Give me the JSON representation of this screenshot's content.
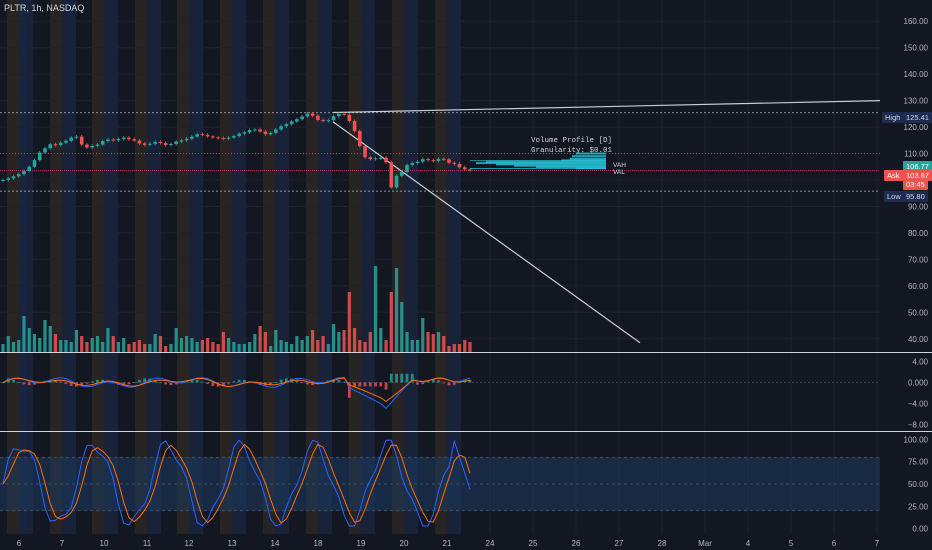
{
  "symbol_label": "PLTR, 1h, NASDAQ",
  "volume_profile": {
    "title": "Volume Profile [D]",
    "granularity": "Granularity: $0.01",
    "vah": "VAH",
    "val": "VAL"
  },
  "tags": {
    "high_label": "High",
    "high_value": "125.41",
    "ask_label": "Ask",
    "ask_value": "103.67",
    "last_value": "106.77",
    "timer_value": "03:45",
    "low_label": "Low",
    "low_value": "95.80"
  },
  "colors": {
    "bg": "#131722",
    "up": "#26a69a",
    "down": "#ef5350",
    "ma_blue": "#2962ff",
    "ma_orange": "#ff6d00",
    "session_blue": "#1c2a4a",
    "session_orange": "#3a3027"
  },
  "chart_data": [
    {
      "type": "line",
      "name": "price",
      "ylim": [
        35,
        165
      ],
      "y_ticks": [
        "160.00",
        "150.00",
        "140.00",
        "130.00",
        "120.00",
        "110.00",
        "100.00",
        "90.00",
        "80.00",
        "70.00",
        "60.00",
        "50.00",
        "40.00"
      ],
      "y_tick_values": [
        160,
        150,
        140,
        130,
        120,
        110,
        100,
        90,
        80,
        70,
        60,
        50,
        40
      ],
      "x_tick_labels": [
        "6",
        "7",
        "10",
        "11",
        "12",
        "13",
        "14",
        "18",
        "19",
        "20",
        "21",
        "24",
        "25",
        "26",
        "27",
        "28",
        "Mar",
        "4",
        "5",
        "6",
        "7"
      ],
      "close": [
        100,
        100.6,
        101.4,
        102.2,
        103.4,
        105,
        107.5,
        110.4,
        112,
        113.5,
        113.2,
        114.1,
        114.8,
        116,
        116.4,
        113.4,
        112.3,
        112.9,
        113.4,
        114.7,
        115.3,
        115,
        115.5,
        116,
        115.4,
        114.9,
        113.8,
        113.3,
        113.7,
        114.4,
        114,
        113.2,
        113.6,
        114.5,
        115,
        115.6,
        116.4,
        117.3,
        117.1,
        116.5,
        116.1,
        115.9,
        115.6,
        116,
        116.6,
        117.5,
        118,
        118.9,
        119.1,
        118.3,
        117.3,
        117.8,
        119.1,
        120.3,
        121.1,
        122.1,
        123,
        124,
        125.1,
        124.3,
        122.7,
        122.3,
        122.6,
        124.1,
        125,
        124.7,
        122.3,
        118.5,
        112.8,
        108.6,
        107.9,
        108.2,
        108.4,
        106.7,
        97.2,
        101.6,
        103,
        105.7,
        106.4,
        106.9,
        107.9,
        107.5,
        107.2,
        108,
        107.8,
        106.5,
        106.1,
        104.8,
        104,
        103.67
      ],
      "volume": [
        4,
        8,
        5,
        6,
        18,
        12,
        9,
        7,
        16,
        13,
        9,
        6,
        6,
        5,
        11,
        8,
        5,
        7,
        8,
        5,
        12,
        8,
        5,
        7,
        4,
        5,
        6,
        4,
        4,
        9,
        8,
        3,
        4,
        12,
        7,
        8,
        7,
        5,
        6,
        7,
        5,
        4,
        10,
        7,
        5,
        4,
        4,
        5,
        9,
        13,
        10,
        3,
        11,
        6,
        5,
        4,
        8,
        6,
        8,
        11,
        6,
        8,
        4,
        14,
        10,
        11,
        30,
        12,
        6,
        5,
        10,
        43,
        12,
        6,
        30,
        42,
        25,
        10,
        6,
        6,
        17,
        10,
        9,
        10,
        8,
        3,
        4,
        4,
        6,
        5
      ],
      "annotations": {
        "high": 125.41,
        "low": 95.8,
        "ask": 103.67,
        "last": 106.77
      }
    },
    {
      "type": "line",
      "name": "macd",
      "ylim": [
        -9,
        5
      ],
      "y_ticks": [
        "4.00",
        "0.000",
        "−4.00",
        "−8.00"
      ],
      "y_tick_values": [
        4,
        0,
        -4,
        -8
      ]
    },
    {
      "type": "line",
      "name": "stochastic",
      "ylim": [
        -6,
        106
      ],
      "y_ticks": [
        "100.00",
        "75.00",
        "50.00",
        "25.00",
        "0.00"
      ],
      "y_tick_values": [
        100,
        75,
        50,
        25,
        0
      ],
      "band": [
        20,
        80
      ]
    }
  ]
}
